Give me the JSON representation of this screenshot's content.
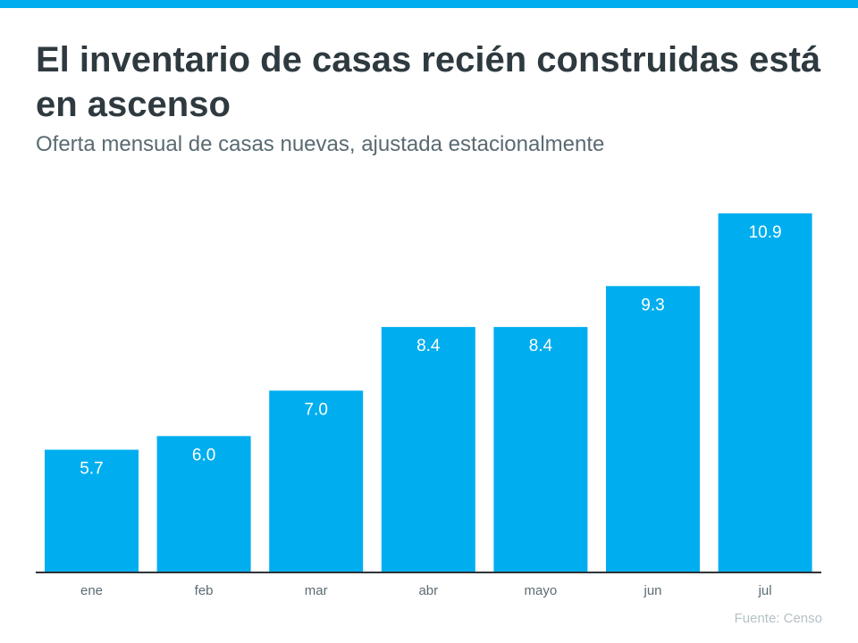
{
  "colors": {
    "accent": "#00aeef",
    "axis": "#2d3339",
    "label": "#5d6b73"
  },
  "title": "El inventario de casas recién construidas está en ascenso",
  "subtitle": "Oferta mensual de casas nuevas, ajustada estacionalmente",
  "source": "Fuente:  Censo",
  "chart_data": {
    "type": "bar",
    "title": "El inventario de casas recién construidas está en ascenso",
    "subtitle": "Oferta mensual de casas nuevas, ajustada estacionalmente",
    "categories": [
      "ene",
      "feb",
      "mar",
      "abr",
      "mayo",
      "jun",
      "jul"
    ],
    "values": [
      5.7,
      6.0,
      7.0,
      8.4,
      8.4,
      9.3,
      10.9
    ],
    "labels": [
      "5.7",
      "6.0",
      "7.0",
      "8.4",
      "8.4",
      "9.3",
      "10.9"
    ],
    "xlabel": "",
    "ylabel": "",
    "ylim": [
      3,
      11.5
    ],
    "grid": false,
    "legend": "none"
  }
}
